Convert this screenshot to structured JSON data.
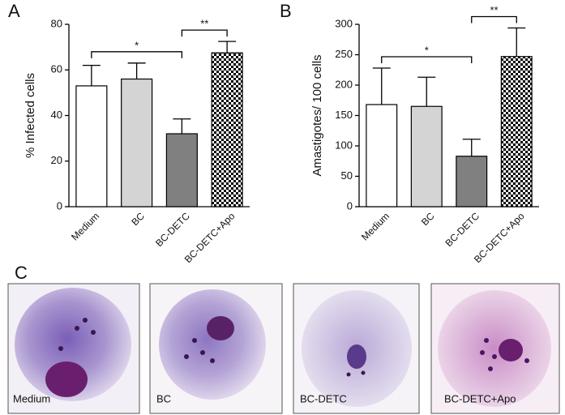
{
  "chart_data": [
    {
      "type": "bar",
      "panel_label": "A",
      "ylabel": "% Infected cells",
      "categories": [
        "Medium",
        "BC",
        "BC-DETC",
        "BC-DETC+Apo"
      ],
      "values": [
        53,
        56,
        32,
        67.5
      ],
      "errors": [
        9,
        7,
        6.5,
        5
      ],
      "fills": [
        "#ffffff",
        "#d4d4d4",
        "#808080",
        "checkerboard"
      ],
      "ylim": [
        0,
        80
      ],
      "yticks": [
        0,
        20,
        40,
        60,
        80
      ],
      "annotations": [
        {
          "text": "*",
          "from": 0,
          "to": 2
        },
        {
          "text": "**",
          "from": 2,
          "to": 3
        }
      ]
    },
    {
      "type": "bar",
      "panel_label": "B",
      "ylabel": "Amastigotes/ 100 cells",
      "categories": [
        "Medium",
        "BC",
        "BC-DETC",
        "BC-DETC+Apo"
      ],
      "values": [
        168,
        165,
        83,
        247
      ],
      "errors": [
        60,
        48,
        28,
        47
      ],
      "fills": [
        "#ffffff",
        "#d4d4d4",
        "#808080",
        "checkerboard"
      ],
      "ylim": [
        0,
        300
      ],
      "yticks": [
        0,
        50,
        100,
        150,
        200,
        250,
        300
      ],
      "annotations": [
        {
          "text": "*",
          "from": 0,
          "to": 2
        },
        {
          "text": "**",
          "from": 2,
          "to": 3
        }
      ]
    }
  ],
  "panel_c": {
    "label": "C",
    "images": [
      "Medium",
      "BC",
      "BC-DETC",
      "BC-DETC+Apo"
    ]
  }
}
